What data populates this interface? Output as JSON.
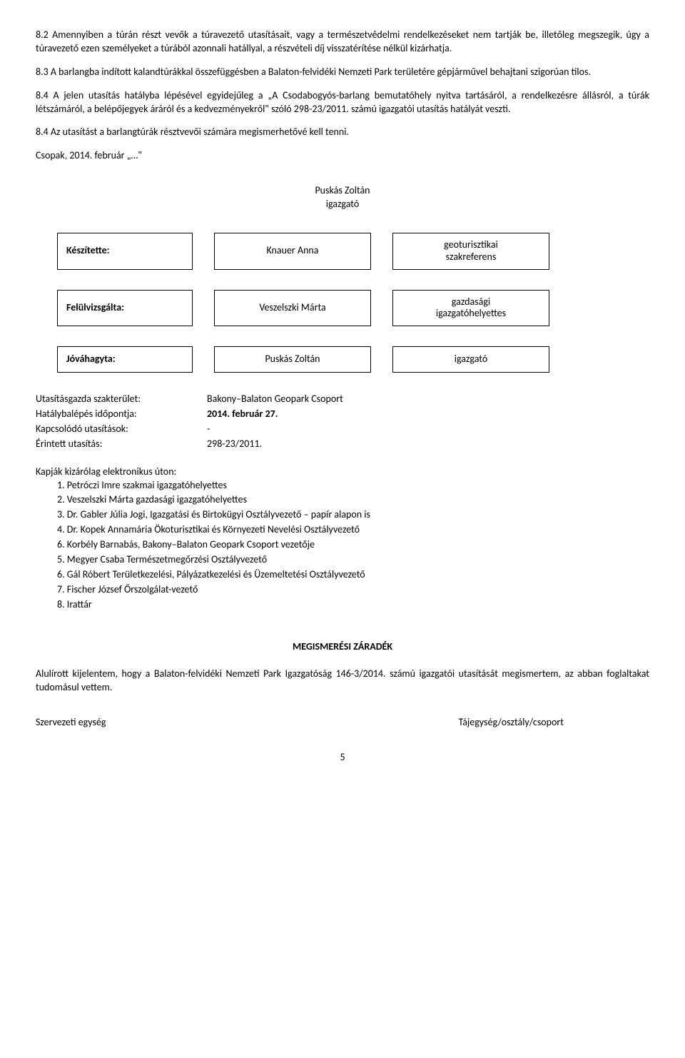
{
  "paragraphs": {
    "p82": "8.2 Amennyiben a túrán részt vevők a túravezető utasításait, vagy a természetvédelmi rendelkezéseket nem tartják be, illetőleg megszegik, úgy a túravezető ezen személyeket a túrából azonnali hatállyal, a részvételi díj visszatérítése nélkül kizárhatja.",
    "p83": "8.3 A barlangba indított kalandtúrákkal összefüggésben a Balaton-felvidéki Nemzeti Park területére gépjárművel behajtani szigorúan tilos.",
    "p84a": "8.4 A jelen utasítás hatályba lépésével egyidejűleg a „A Csodabogyós-barlang bemutatóhely nyitva tartásáról, a rendelkezésre állásról, a túrák létszámáról, a belépőjegyek áráról és a kedvezményekről\" szóló 298-23/2011. számú igazgatói utasítás hatályát veszti.",
    "p84b": "8.4 Az utasítást a barlangtúrák résztvevői számára megismerhetővé kell tenni.",
    "dateLine": "Csopak, 2014. február „…\"",
    "zaradek": "Alulírott kijelentem, hogy a Balaton-felvidéki Nemzeti Park Igazgatóság 146-3/2014. számú igazgatói utasítását megismertem, az abban foglaltakat tudomásul vettem."
  },
  "signature": {
    "name": "Puskás Zoltán",
    "role": "igazgató"
  },
  "sigTable": [
    {
      "label": "Készítette:",
      "name": "Knauer Anna",
      "role1": "geoturisztikai",
      "role2": "szakreferens"
    },
    {
      "label": "Felülvizsgálta:",
      "name": "Veszelszki Márta",
      "role1": "gazdasági",
      "role2": "igazgatóhelyettes"
    },
    {
      "label": "Jóváhagyta:",
      "name": "Puskás Zoltán",
      "role1": "igazgató",
      "role2": ""
    }
  ],
  "info": [
    {
      "label": "Utasításgazda szakterület:",
      "value": "Bakony–Balaton Geopark Csoport",
      "bold": true
    },
    {
      "label": "Hatálybalépés időpontja:",
      "value": "2014. február 27.",
      "bold": true
    },
    {
      "label": "Kapcsolódó utasítások:",
      "value": "-",
      "bold": false
    },
    {
      "label": "Érintett utasítás:",
      "value": "298-23/2011.",
      "bold": false
    }
  ],
  "recipientsHeader": "Kapják kizárólag elektronikus úton:",
  "recipients": [
    "1. Petróczi Imre szakmai igazgatóhelyettes",
    "2. Veszelszki Márta gazdasági igazgatóhelyettes",
    "3. Dr. Gabler Júlia Jogi, Igazgatási és Birtokügyi Osztályvezető – papír alapon is",
    "4. Dr. Kopek Annamária Ökoturisztikai és Környezeti Nevelési Osztályvezető",
    "6. Korbély Barnabás, Bakony–Balaton Geopark Csoport vezetője",
    "5. Megyer Csaba Természetmegőrzési Osztályvezető",
    "6. Gál Róbert Területkezelési, Pályázatkezelési és Üzemeltetési Osztályvezető",
    "7. Fischer József Őrszolgálat-vezető",
    "8. Irattár"
  ],
  "zaradekTitle": "MEGISMERÉSI ZÁRADÉK",
  "footer": {
    "left": "Szervezeti egység",
    "right": "Tájegység/osztály/csoport"
  },
  "pageNumber": "5"
}
